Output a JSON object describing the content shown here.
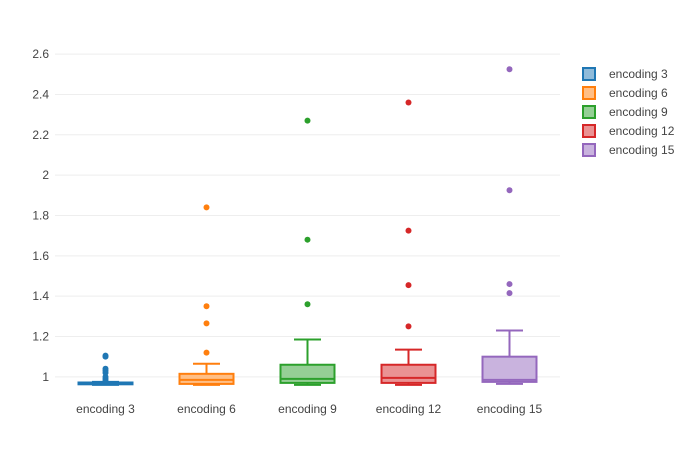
{
  "chart_data": {
    "type": "box",
    "title": "",
    "xlabel": "",
    "ylabel": "",
    "ylim": [
      0.91,
      2.67
    ],
    "yticks": [
      1,
      1.2,
      1.4,
      1.6,
      1.8,
      2,
      2.2,
      2.4,
      2.6
    ],
    "grid": "horizontal",
    "legend_position": "top-right",
    "categories": [
      "encoding 3",
      "encoding 6",
      "encoding 9",
      "encoding 12",
      "encoding 15"
    ],
    "series": [
      {
        "name": "encoding 3",
        "color": "#1f77b4",
        "fill": "#8fbbda",
        "min": 0.96,
        "q1": 0.963,
        "median": 0.966,
        "q3": 0.972,
        "max": 0.975,
        "outliers": [
          0.98,
          0.99,
          1.0,
          1.02,
          1.03,
          1.04,
          1.1,
          1.105
        ]
      },
      {
        "name": "encoding 6",
        "color": "#ff7f0e",
        "fill": "#ffbf86",
        "min": 0.96,
        "q1": 0.965,
        "median": 0.985,
        "q3": 1.015,
        "max": 1.065,
        "outliers": [
          1.12,
          1.265,
          1.35,
          1.84
        ]
      },
      {
        "name": "encoding 9",
        "color": "#2ca02c",
        "fill": "#95cf95",
        "min": 0.96,
        "q1": 0.97,
        "median": 0.99,
        "q3": 1.06,
        "max": 1.185,
        "outliers": [
          1.36,
          1.68,
          2.27
        ]
      },
      {
        "name": "encoding 12",
        "color": "#d62728",
        "fill": "#ea9293",
        "min": 0.96,
        "q1": 0.97,
        "median": 0.995,
        "q3": 1.06,
        "max": 1.135,
        "outliers": [
          1.25,
          1.455,
          1.725,
          2.36
        ]
      },
      {
        "name": "encoding 15",
        "color": "#9467bd",
        "fill": "#c9b3de",
        "min": 0.965,
        "q1": 0.975,
        "median": 0.985,
        "q3": 1.1,
        "max": 1.23,
        "outliers": [
          1.415,
          1.46,
          1.925,
          2.525
        ]
      }
    ]
  }
}
